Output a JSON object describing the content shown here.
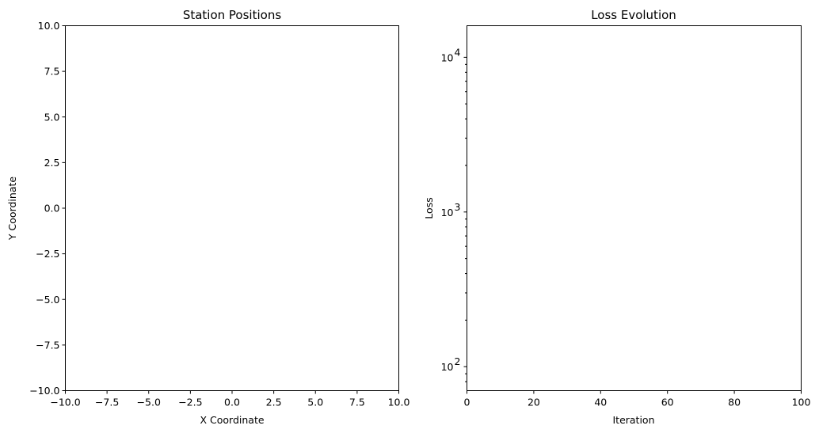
{
  "chart_data": [
    {
      "type": "scatter",
      "title": "Station Positions",
      "xlabel": "X Coordinate",
      "ylabel": "Y Coordinate",
      "xlim": [
        -10,
        10
      ],
      "ylim": [
        -10,
        10
      ],
      "x_ticks": [
        -10,
        -7.5,
        -5,
        -2.5,
        0,
        2.5,
        5,
        7.5,
        10
      ],
      "x_tick_labels": [
        "−10.0",
        "−7.5",
        "−5.0",
        "−2.5",
        "0.0",
        "2.5",
        "5.0",
        "7.5",
        "10.0"
      ],
      "y_ticks": [
        10,
        7.5,
        5,
        2.5,
        0,
        -2.5,
        -5,
        -7.5,
        -10
      ],
      "y_tick_labels": [
        "10.0",
        "7.5",
        "5.0",
        "2.5",
        "0.0",
        "−2.5",
        "−5.0",
        "−7.5",
        "−10.0"
      ],
      "series": [],
      "grid": false
    },
    {
      "type": "line",
      "title": "Loss Evolution",
      "xlabel": "Iteration",
      "ylabel": "Loss",
      "xlim": [
        0,
        100
      ],
      "ylim": [
        70,
        16000
      ],
      "yscale": "log",
      "x_ticks": [
        0,
        20,
        40,
        60,
        80,
        100
      ],
      "x_tick_labels": [
        "0",
        "20",
        "40",
        "60",
        "80",
        "100"
      ],
      "y_major_ticks": [
        100,
        1000,
        10000
      ],
      "y_tick_labels": [
        {
          "base": "10",
          "exp": "2"
        },
        {
          "base": "10",
          "exp": "3"
        },
        {
          "base": "10",
          "exp": "4"
        }
      ],
      "series": [],
      "grid": false
    }
  ]
}
